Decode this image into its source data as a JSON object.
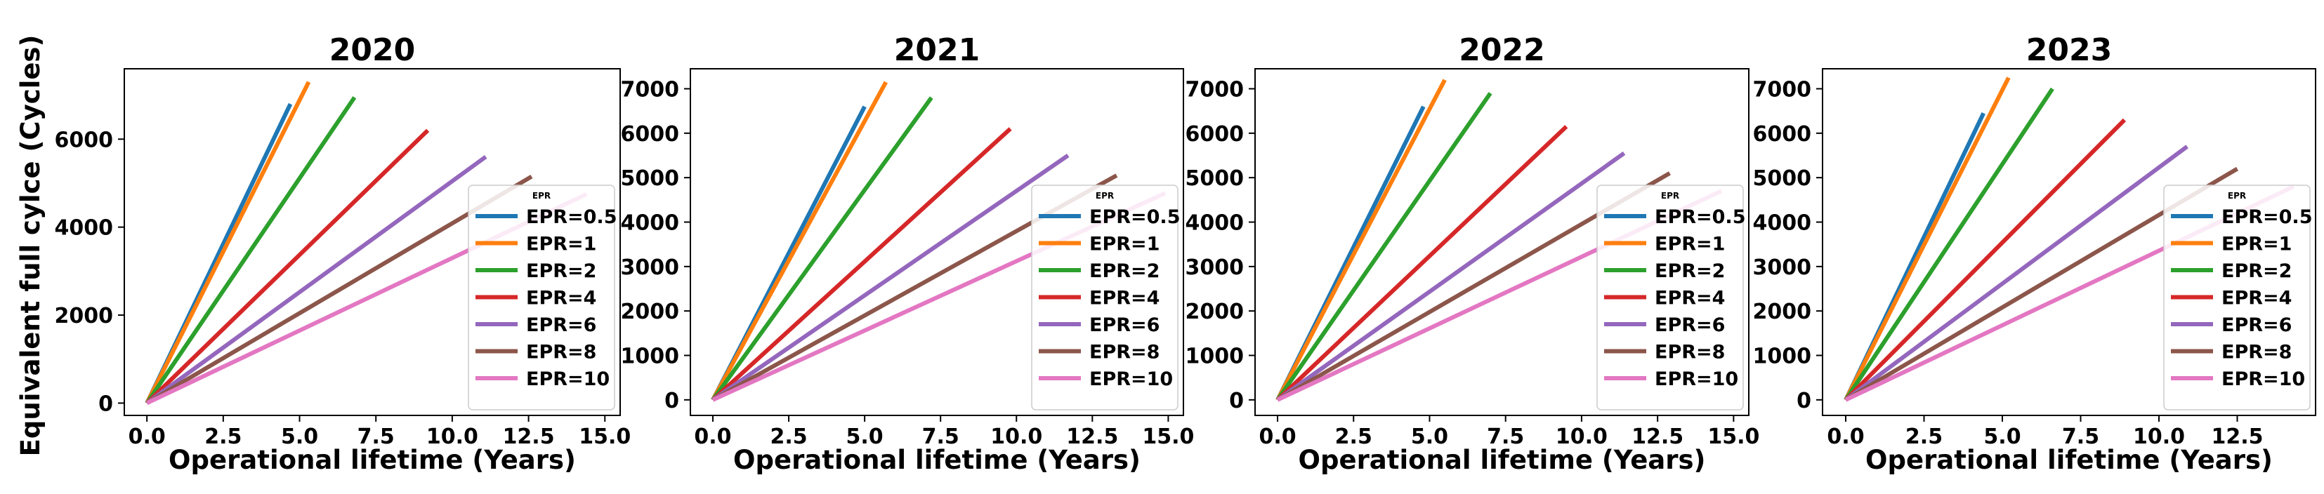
{
  "figure": {
    "ylabel": "Equivalent full cylce (Cycles)",
    "legend_title": "EPR",
    "legend_location": "lower right",
    "colors": {
      "EPR=0.5": "#1f77b4",
      "EPR=1": "#ff7f0e",
      "EPR=2": "#2ca02c",
      "EPR=4": "#d62728",
      "EPR=6": "#9467bd",
      "EPR=8": "#8c564b",
      "EPR=10": "#e377c2"
    }
  },
  "chart_data": [
    {
      "type": "line",
      "title": "2020",
      "xlabel": "Operational lifetime (Years)",
      "ylabel": "Equivalent full cylce (Cycles)",
      "xlim": [
        -0.74,
        15.5
      ],
      "ylim": [
        -280,
        7600
      ],
      "xticks": [
        0.0,
        2.5,
        5.0,
        7.5,
        10.0,
        12.5,
        15.0
      ],
      "xtick_labels": [
        "0.0",
        "2.5",
        "5.0",
        "7.5",
        "10.0",
        "12.5",
        "15.0"
      ],
      "yticks": [
        0,
        2000,
        4000,
        6000
      ],
      "ytick_labels": [
        "0",
        "2000",
        "4000",
        "6000"
      ],
      "series": [
        {
          "name": "EPR=0.5",
          "x": [
            0,
            4.7
          ],
          "y": [
            0,
            6800
          ]
        },
        {
          "name": "EPR=1",
          "x": [
            0,
            5.3
          ],
          "y": [
            0,
            7300
          ]
        },
        {
          "name": "EPR=2",
          "x": [
            0,
            6.8
          ],
          "y": [
            0,
            6950
          ]
        },
        {
          "name": "EPR=4",
          "x": [
            0,
            9.2
          ],
          "y": [
            0,
            6200
          ]
        },
        {
          "name": "EPR=6",
          "x": [
            0,
            11.1
          ],
          "y": [
            0,
            5600
          ]
        },
        {
          "name": "EPR=8",
          "x": [
            0,
            12.6
          ],
          "y": [
            0,
            5150
          ]
        },
        {
          "name": "EPR=10",
          "x": [
            0,
            14.4
          ],
          "y": [
            0,
            4750
          ]
        }
      ]
    },
    {
      "type": "line",
      "title": "2021",
      "xlabel": "Operational lifetime (Years)",
      "ylabel": "",
      "xlim": [
        -0.74,
        15.5
      ],
      "ylim": [
        -350,
        7450
      ],
      "xticks": [
        0.0,
        2.5,
        5.0,
        7.5,
        10.0,
        12.5,
        15.0
      ],
      "xtick_labels": [
        "0.0",
        "2.5",
        "5.0",
        "7.5",
        "10.0",
        "12.5",
        "15.0"
      ],
      "yticks": [
        0,
        1000,
        2000,
        3000,
        4000,
        5000,
        6000,
        7000
      ],
      "ytick_labels": [
        "0",
        "1000",
        "2000",
        "3000",
        "4000",
        "5000",
        "6000",
        "7000"
      ],
      "series": [
        {
          "name": "EPR=0.5",
          "x": [
            0,
            5.0
          ],
          "y": [
            0,
            6600
          ]
        },
        {
          "name": "EPR=1",
          "x": [
            0,
            5.7
          ],
          "y": [
            0,
            7150
          ]
        },
        {
          "name": "EPR=2",
          "x": [
            0,
            7.2
          ],
          "y": [
            0,
            6800
          ]
        },
        {
          "name": "EPR=4",
          "x": [
            0,
            9.8
          ],
          "y": [
            0,
            6100
          ]
        },
        {
          "name": "EPR=6",
          "x": [
            0,
            11.7
          ],
          "y": [
            0,
            5500
          ]
        },
        {
          "name": "EPR=8",
          "x": [
            0,
            13.3
          ],
          "y": [
            0,
            5050
          ]
        },
        {
          "name": "EPR=10",
          "x": [
            0,
            14.9
          ],
          "y": [
            0,
            4650
          ]
        }
      ]
    },
    {
      "type": "line",
      "title": "2022",
      "xlabel": "Operational lifetime (Years)",
      "ylabel": "",
      "xlim": [
        -0.74,
        15.5
      ],
      "ylim": [
        -350,
        7450
      ],
      "xticks": [
        0.0,
        2.5,
        5.0,
        7.5,
        10.0,
        12.5,
        15.0
      ],
      "xtick_labels": [
        "0.0",
        "2.5",
        "5.0",
        "7.5",
        "10.0",
        "12.5",
        "15.0"
      ],
      "yticks": [
        0,
        1000,
        2000,
        3000,
        4000,
        5000,
        6000,
        7000
      ],
      "ytick_labels": [
        "0",
        "1000",
        "2000",
        "3000",
        "4000",
        "5000",
        "6000",
        "7000"
      ],
      "series": [
        {
          "name": "EPR=0.5",
          "x": [
            0,
            4.8
          ],
          "y": [
            0,
            6600
          ]
        },
        {
          "name": "EPR=1",
          "x": [
            0,
            5.5
          ],
          "y": [
            0,
            7200
          ]
        },
        {
          "name": "EPR=2",
          "x": [
            0,
            7.0
          ],
          "y": [
            0,
            6900
          ]
        },
        {
          "name": "EPR=4",
          "x": [
            0,
            9.5
          ],
          "y": [
            0,
            6150
          ]
        },
        {
          "name": "EPR=6",
          "x": [
            0,
            11.4
          ],
          "y": [
            0,
            5550
          ]
        },
        {
          "name": "EPR=8",
          "x": [
            0,
            12.9
          ],
          "y": [
            0,
            5100
          ]
        },
        {
          "name": "EPR=10",
          "x": [
            0,
            14.6
          ],
          "y": [
            0,
            4700
          ]
        }
      ]
    },
    {
      "type": "line",
      "title": "2023",
      "xlabel": "Operational lifetime (Years)",
      "ylabel": "",
      "xlim": [
        -0.74,
        15.0
      ],
      "ylim": [
        -350,
        7450
      ],
      "xticks": [
        0.0,
        2.5,
        5.0,
        7.5,
        10.0,
        12.5
      ],
      "xtick_labels": [
        "0.0",
        "2.5",
        "5.0",
        "7.5",
        "10.0",
        "12.5"
      ],
      "yticks": [
        0,
        1000,
        2000,
        3000,
        4000,
        5000,
        6000,
        7000
      ],
      "ytick_labels": [
        "0",
        "1000",
        "2000",
        "3000",
        "4000",
        "5000",
        "6000",
        "7000"
      ],
      "series": [
        {
          "name": "EPR=0.5",
          "x": [
            0,
            4.4
          ],
          "y": [
            0,
            6450
          ]
        },
        {
          "name": "EPR=1",
          "x": [
            0,
            5.2
          ],
          "y": [
            0,
            7250
          ]
        },
        {
          "name": "EPR=2",
          "x": [
            0,
            6.6
          ],
          "y": [
            0,
            7000
          ]
        },
        {
          "name": "EPR=4",
          "x": [
            0,
            8.9
          ],
          "y": [
            0,
            6300
          ]
        },
        {
          "name": "EPR=6",
          "x": [
            0,
            10.9
          ],
          "y": [
            0,
            5700
          ]
        },
        {
          "name": "EPR=8",
          "x": [
            0,
            12.5
          ],
          "y": [
            0,
            5200
          ]
        },
        {
          "name": "EPR=10",
          "x": [
            0,
            14.3
          ],
          "y": [
            0,
            4800
          ]
        }
      ]
    }
  ]
}
